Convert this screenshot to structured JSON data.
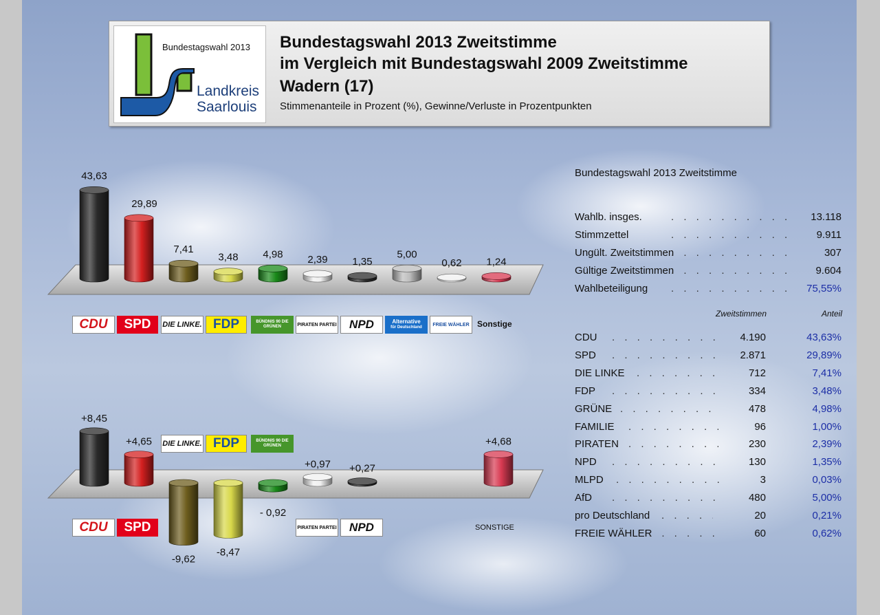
{
  "header": {
    "logo_text_top": "Bundestagswahl 2013",
    "logo_text_line1": "Landkreis",
    "logo_text_line2": "Saarlouis",
    "title_line1": "Bundestagswahl 2013 Zweitstimme",
    "title_line2": "im Vergleich mit Bundestagswahl 2009 Zweitstimme",
    "title_line3": "Wadern (17)",
    "subtitle": "Stimmenanteile in Prozent (%), Gewinne/Verluste in Prozentpunkten"
  },
  "chart_data": [
    {
      "type": "bar",
      "title": "",
      "categories": [
        "CDU",
        "SPD",
        "DIE LINKE.",
        "FDP",
        "BÜNDNIS 90 DIE GRÜNEN",
        "PIRATEN PARTEI",
        "NPD",
        "Alternative für Deutschland",
        "FREIE WÄHLER",
        "Sonstige"
      ],
      "values": [
        43.63,
        29.89,
        7.41,
        3.48,
        4.98,
        2.39,
        1.35,
        5.0,
        0.62,
        1.24
      ],
      "value_labels": [
        "43,63",
        "29,89",
        "7,41",
        "3,48",
        "4,98",
        "2,39",
        "1,35",
        "5,00",
        "0,62",
        "1,24"
      ],
      "colors": [
        "#2a2a2a",
        "#d42020",
        "#6e5e1e",
        "#d8d84a",
        "#1a8a1a",
        "#f0f0f0",
        "#2c2c2c",
        "#bdbdbd",
        "#f0f0f0",
        "#d83a52"
      ],
      "ylim": [
        0,
        45
      ]
    },
    {
      "type": "bar",
      "title": "",
      "categories": [
        "CDU",
        "SPD",
        "DIE LINKE.",
        "FDP",
        "BÜNDNIS 90 DIE GRÜNEN",
        "PIRATEN PARTEI",
        "NPD",
        "SONSTIGE"
      ],
      "values": [
        8.45,
        4.65,
        -9.62,
        -8.47,
        -0.92,
        0.97,
        0.27,
        4.68
      ],
      "value_labels": [
        "+8,45",
        "+4,65",
        "-9,62",
        "-8,47",
        "- 0,92",
        "+0,97",
        "+0,27",
        "+4,68"
      ],
      "colors": [
        "#2a2a2a",
        "#d42020",
        "#6e5e1e",
        "#d8d84a",
        "#1a8a1a",
        "#f0f0f0",
        "#2c2c2c",
        "#d83a52"
      ],
      "ylim": [
        -10,
        10
      ]
    }
  ],
  "logos": {
    "cdu": "CDU",
    "spd": "SPD",
    "linke": "DIE LINKE.",
    "fdp": "FDP",
    "gruene": "BÜNDNIS 90 DIE GRÜNEN",
    "piraten": "PIRATEN PARTEI",
    "npd": "NPD",
    "afd_line1": "Alternative",
    "afd_line2": "für Deutschland",
    "fw": "FREIE WÄHLER",
    "sonstige_top": "Sonstige",
    "sonstige_bottom": "SONSTIGE"
  },
  "table": {
    "title": "Bundestagswahl 2013 Zweitstimme",
    "summary": [
      {
        "label": "Wahlb. insges.",
        "value": "13.118"
      },
      {
        "label": "Stimmzettel",
        "value": "9.911"
      },
      {
        "label": "Ungült. Zweitstimmen",
        "value": "307"
      },
      {
        "label": "Gültige Zweitstimmen",
        "value": "9.604"
      },
      {
        "label": "Wahlbeteiligung",
        "value": "75,55%"
      }
    ],
    "col_votes": "Zweitstimmen",
    "col_share": "Anteil",
    "parties": [
      {
        "name": "CDU",
        "votes": "4.190",
        "share": "43,63%"
      },
      {
        "name": "SPD",
        "votes": "2.871",
        "share": "29,89%"
      },
      {
        "name": "DIE LINKE",
        "votes": "712",
        "share": "7,41%"
      },
      {
        "name": "FDP",
        "votes": "334",
        "share": "3,48%"
      },
      {
        "name": "GRÜNE",
        "votes": "478",
        "share": "4,98%"
      },
      {
        "name": "FAMILIE",
        "votes": "96",
        "share": "1,00%"
      },
      {
        "name": "PIRATEN",
        "votes": "230",
        "share": "2,39%"
      },
      {
        "name": "NPD",
        "votes": "130",
        "share": "1,35%"
      },
      {
        "name": "MLPD",
        "votes": "3",
        "share": "0,03%"
      },
      {
        "name": "AfD",
        "votes": "480",
        "share": "5,00%"
      },
      {
        "name": "pro Deutschland",
        "votes": "20",
        "share": "0,21%"
      },
      {
        "name": "FREIE WÄHLER",
        "votes": "60",
        "share": "0,62%"
      }
    ]
  }
}
